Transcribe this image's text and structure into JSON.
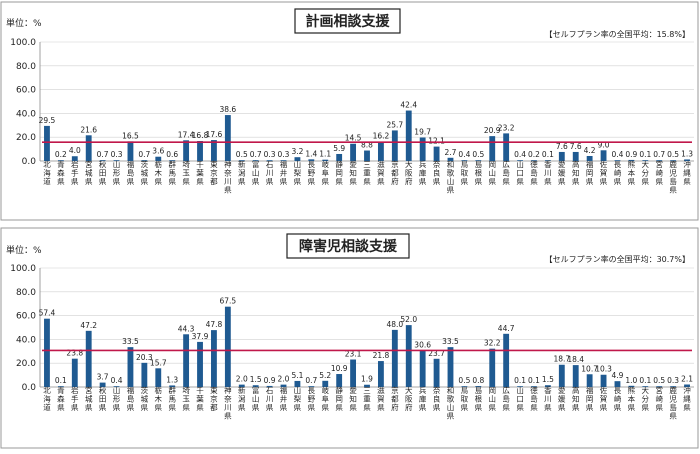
{
  "unit_label": "単位：%",
  "colors": {
    "bar": "#1f5a91",
    "average_line": "#c0184a"
  },
  "chart_data": [
    {
      "type": "bar",
      "title": "計画相談支援",
      "average_note": "【セルフプラン率の全国平均：15.8%】",
      "average": 15.8,
      "ylim": [
        0,
        100
      ],
      "yticks": [
        "0.0",
        "20.0",
        "40.0",
        "60.0",
        "80.0",
        "100.0"
      ],
      "grid": true,
      "categories": [
        "北海道",
        "青森県",
        "岩手県",
        "宮城県",
        "秋田県",
        "山形県",
        "福島県",
        "茨城県",
        "栃木県",
        "群馬県",
        "埼玉県",
        "千葉県",
        "東京都",
        "神奈川県",
        "新潟県",
        "富山県",
        "石川県",
        "福井県",
        "山梨県",
        "長野県",
        "岐阜県",
        "静岡県",
        "愛知県",
        "三重県",
        "滋賀県",
        "京都府",
        "大阪府",
        "兵庫県",
        "奈良県",
        "和歌山県",
        "鳥取県",
        "島根県",
        "岡山県",
        "広島県",
        "山口県",
        "徳島県",
        "香川県",
        "愛媛県",
        "高知県",
        "福岡県",
        "佐賀県",
        "長崎県",
        "熊本県",
        "大分県",
        "宮崎県",
        "鹿児島県",
        "沖縄県"
      ],
      "values": [
        29.5,
        0.2,
        4.0,
        21.6,
        0.7,
        0.3,
        16.5,
        0.7,
        3.6,
        0.6,
        17.4,
        16.8,
        17.6,
        38.6,
        0.5,
        0.7,
        0.3,
        0.3,
        3.2,
        1.4,
        1.1,
        5.9,
        14.5,
        8.8,
        16.2,
        25.7,
        42.4,
        19.7,
        12.1,
        2.7,
        0.4,
        0.5,
        20.9,
        23.2,
        0.4,
        0.2,
        0.1,
        7.6,
        7.6,
        4.2,
        9.0,
        0.4,
        0.9,
        0.1,
        0.7,
        0.5,
        1.3
      ],
      "data_labels": [
        "29.5",
        "0.2",
        "4.0",
        "21.6",
        "0.7",
        "0.3",
        "16.5",
        "0.7",
        "3.6",
        "0.6",
        "17.4",
        "16.8",
        "17.6",
        "38.6",
        "0.5",
        "0.7",
        "0.3",
        "0.3",
        "3.2",
        "1.4",
        "1.1",
        "5.9",
        "14.5",
        "8.8",
        "16.2",
        "25.7",
        "42.4",
        "19.7",
        "12.1",
        "2.7",
        "0.4",
        "0.5",
        "20.9",
        "23.2",
        "0.4",
        "0.2",
        "0.1",
        "7.6",
        "7.6",
        "4.2",
        "9.0",
        "0.4",
        "0.9",
        "0.1",
        "0.7",
        "0.5",
        "1.3"
      ]
    },
    {
      "type": "bar",
      "title": "障害児相談支援",
      "average_note": "【セルフプラン率の全国平均：30.7%】",
      "average": 30.7,
      "ylim": [
        0,
        100
      ],
      "yticks": [
        "0.0",
        "20.0",
        "40.0",
        "60.0",
        "80.0",
        "100.0"
      ],
      "grid": true,
      "categories": [
        "北海道",
        "青森県",
        "岩手県",
        "宮城県",
        "秋田県",
        "山形県",
        "福島県",
        "茨城県",
        "栃木県",
        "群馬県",
        "埼玉県",
        "千葉県",
        "東京都",
        "神奈川県",
        "新潟県",
        "富山県",
        "石川県",
        "福井県",
        "山梨県",
        "長野県",
        "岐阜県",
        "静岡県",
        "愛知県",
        "三重県",
        "滋賀県",
        "京都府",
        "大阪府",
        "兵庫県",
        "奈良県",
        "和歌山県",
        "鳥取県",
        "島根県",
        "岡山県",
        "広島県",
        "山口県",
        "徳島県",
        "香川県",
        "愛媛県",
        "高知県",
        "福岡県",
        "佐賀県",
        "長崎県",
        "熊本県",
        "大分県",
        "宮崎県",
        "鹿児島県",
        "沖縄県"
      ],
      "values": [
        57.4,
        0.1,
        23.8,
        47.2,
        3.7,
        0.4,
        33.5,
        20.3,
        15.7,
        1.3,
        44.3,
        37.9,
        47.8,
        67.5,
        2.0,
        1.5,
        0.9,
        2.0,
        5.1,
        0.7,
        5.2,
        10.9,
        23.1,
        1.9,
        21.8,
        48.0,
        52.0,
        30.6,
        23.7,
        33.5,
        0.5,
        0.8,
        32.2,
        44.7,
        0.1,
        0.1,
        1.5,
        18.7,
        18.4,
        10.7,
        10.3,
        4.9,
        1.0,
        0.1,
        0.5,
        0.3,
        2.1
      ],
      "data_labels": [
        "57.4",
        "0.1",
        "23.8",
        "47.2",
        "3.7",
        "0.4",
        "33.5",
        "20.3",
        "15.7",
        "1.3",
        "44.3",
        "37.9",
        "47.8",
        "67.5",
        "2.0",
        "1.5",
        "0.9",
        "2.0",
        "5.1",
        "0.7",
        "5.2",
        "10.9",
        "23.1",
        "1.9",
        "21.8",
        "48.0",
        "52.0",
        "30.6",
        "23.7",
        "33.5",
        "0.5",
        "0.8",
        "32.2",
        "44.7",
        "0.1",
        "0.1",
        "1.5",
        "18.7",
        "18.4",
        "10.7",
        "10.3",
        "4.9",
        "1.0",
        "0.1",
        "0.5",
        "0.3",
        "2.1"
      ]
    }
  ]
}
